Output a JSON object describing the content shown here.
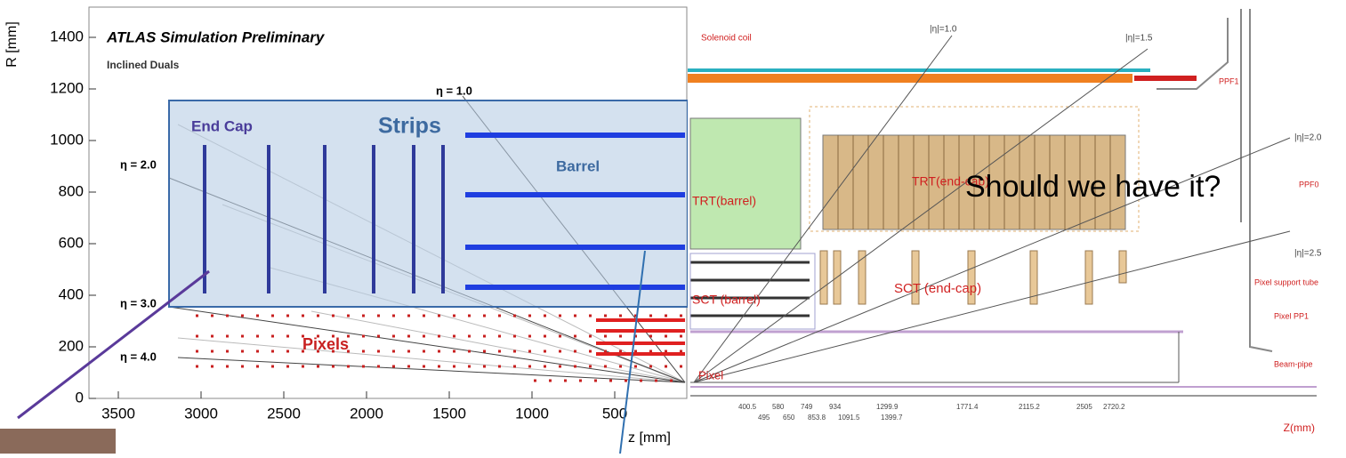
{
  "left_panel": {
    "title": "ATLAS Simulation Preliminary",
    "subtitle": "Inclined Duals",
    "y_axis_label": "R [mm]",
    "x_axis_label": "z [mm]",
    "yticks": [
      "0",
      "200",
      "400",
      "600",
      "800",
      "1000",
      "1200",
      "1400"
    ],
    "xticks": [
      "3500",
      "3000",
      "2500",
      "2000",
      "1500",
      "1000",
      "500"
    ],
    "region_labels": [
      "End Cap",
      "Strips",
      "Barrel",
      "Pixels"
    ],
    "eta_labels": [
      "η = 1.0",
      "η = 2.0",
      "η = 3.0",
      "η = 4.0"
    ]
  },
  "right_panel": {
    "labels": [
      "Solenoid coil",
      "TRT(barrel)",
      "TRT(end-cap)",
      "SCT (barrel)",
      "SCT (end-cap)",
      "Pixel",
      "Pixel support tube",
      "Pixel PP1",
      "Beam-pipe",
      "PPF1",
      "PPF0"
    ],
    "eta_labels": [
      "|η|=1.0",
      "|η|=1.5",
      "|η|=2.0",
      "|η|=2.5"
    ],
    "axis_label": "Z(mm)",
    "dimensions_top": [
      "400.5",
      "580",
      "749",
      "934",
      "1299.9",
      "1771.4",
      "2115.2",
      "2505",
      "2720.2"
    ],
    "dimensions_bottom": [
      "495",
      "650",
      "853.8",
      "1091.5",
      "1399.7"
    ]
  },
  "overlay_text": "Should we have it?"
}
